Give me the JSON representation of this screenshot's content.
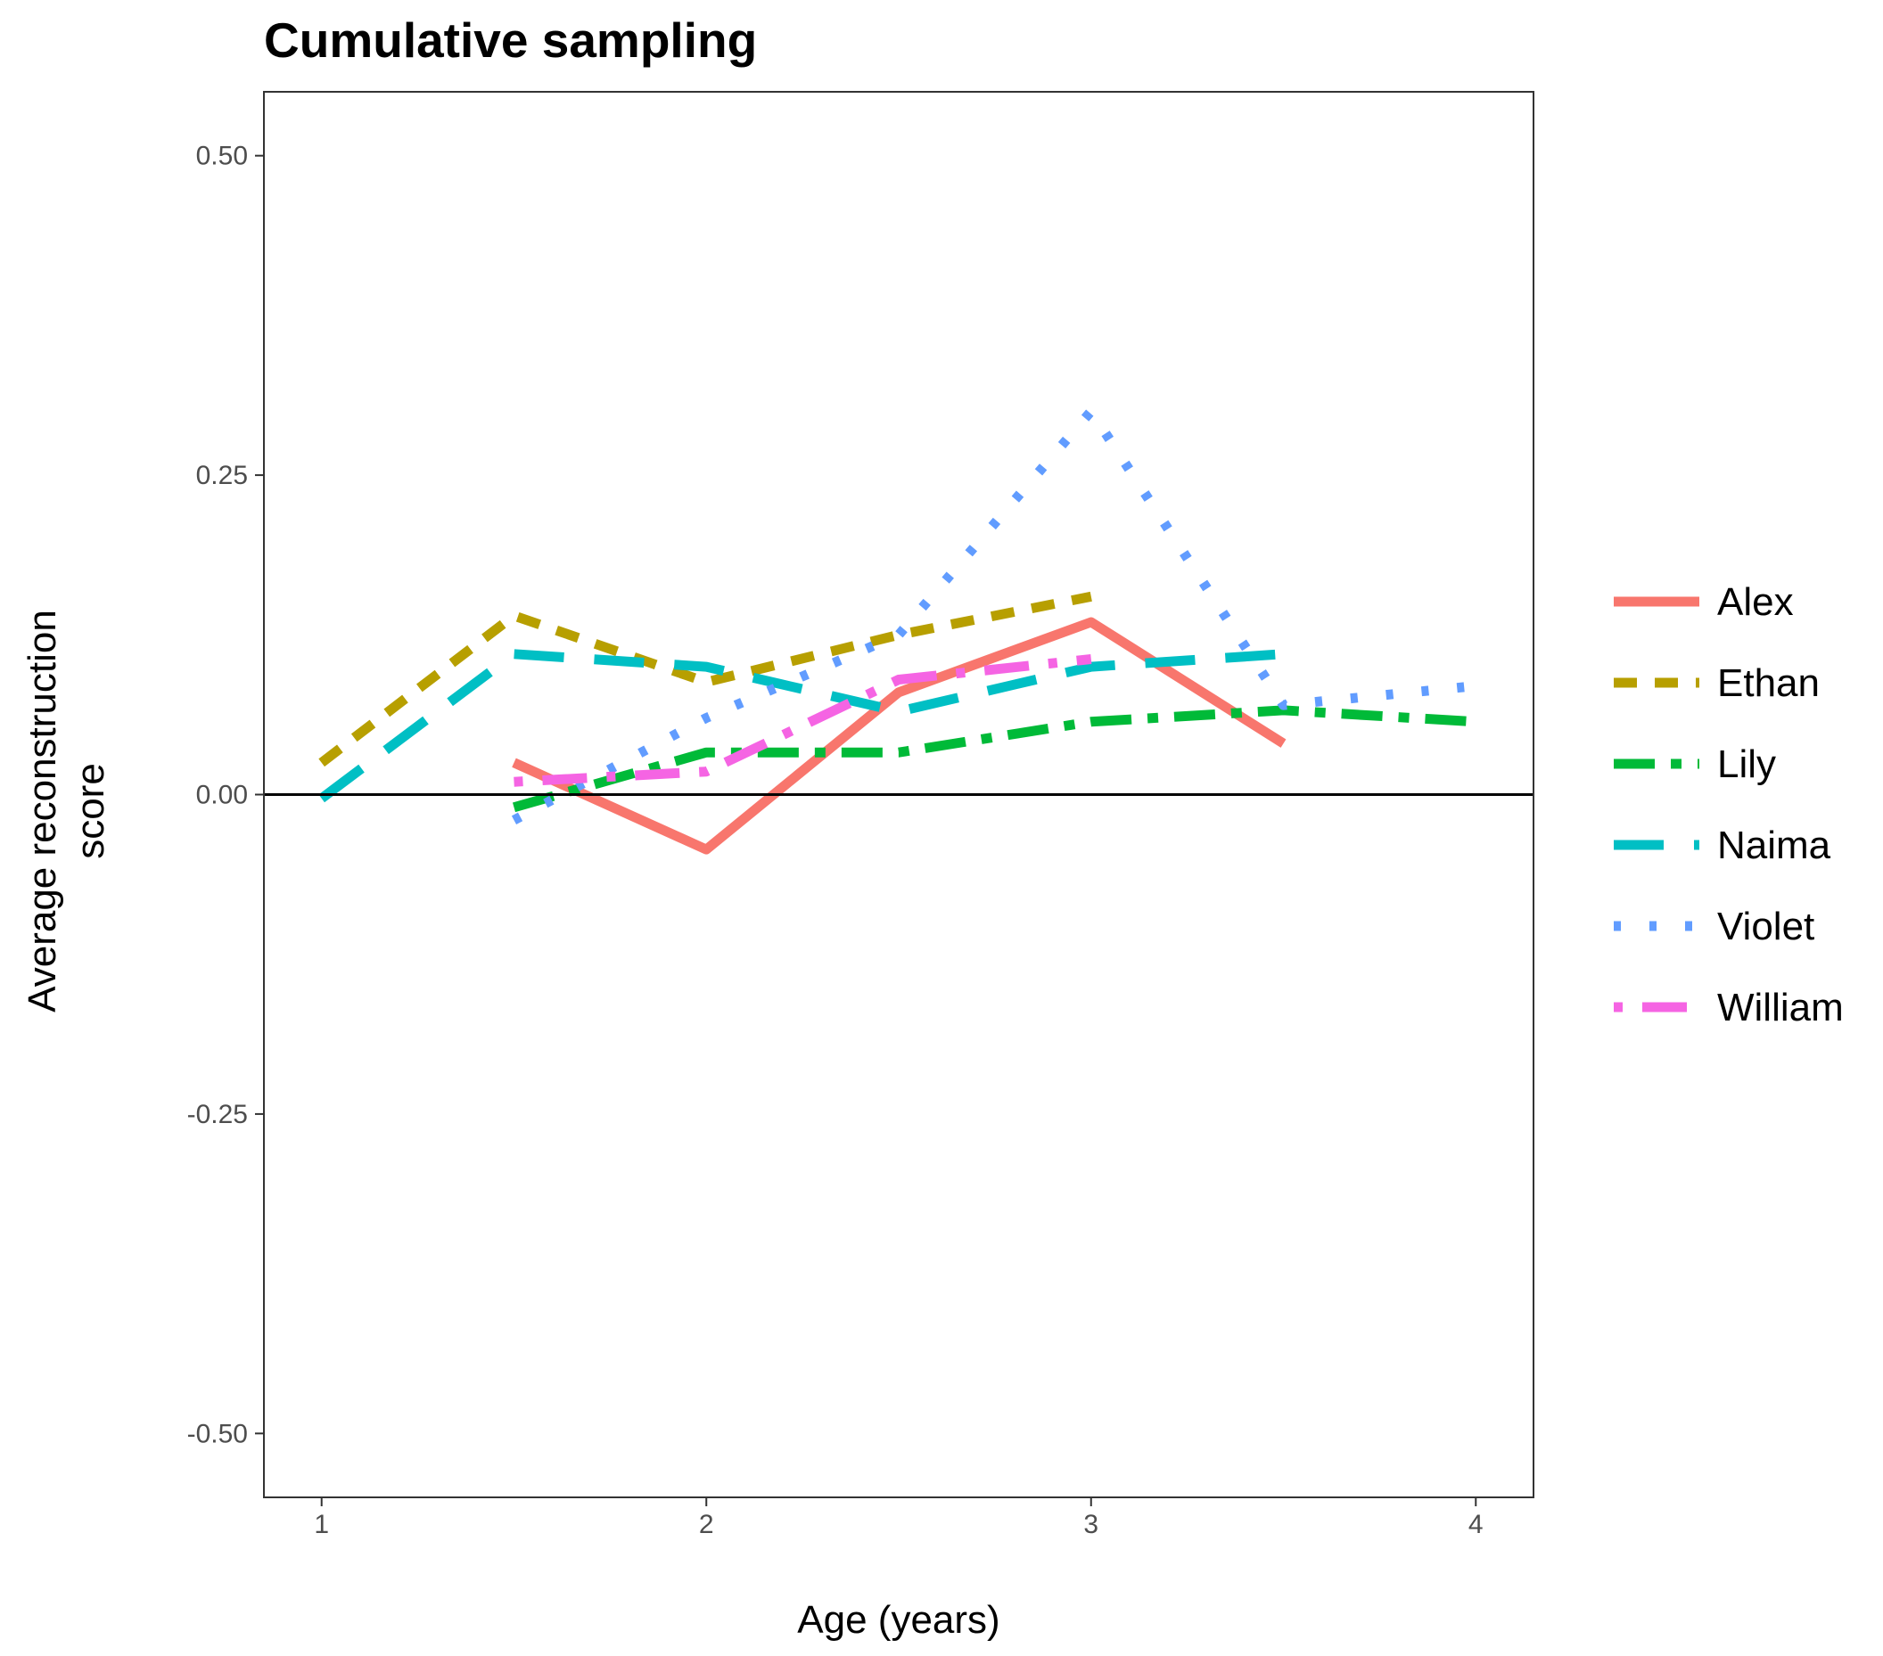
{
  "chart_data": {
    "type": "line",
    "title": "Cumulative sampling",
    "xlabel": "Age (years)",
    "ylabel": "Average reconstruction\nscore",
    "xlim": [
      0.85,
      4.15
    ],
    "ylim": [
      -0.55,
      0.55
    ],
    "x_ticks": [
      1,
      2,
      3,
      4
    ],
    "x_tick_labels": [
      "1",
      "2",
      "3",
      "4"
    ],
    "y_ticks": [
      0.5,
      0.25,
      0.0,
      -0.25,
      -0.5
    ],
    "y_tick_labels": [
      "0.50",
      "0.25",
      "0.00",
      "-0.25",
      "-0.50"
    ],
    "reference_line_y": 0,
    "grid": false,
    "legend_position": "right",
    "series": [
      {
        "name": "Alex",
        "color": "#F8766D",
        "dash": "solid",
        "x": [
          1.5,
          2.0,
          2.5,
          3.0,
          3.5
        ],
        "y": [
          0.025,
          -0.043,
          0.08,
          0.135,
          0.04
        ]
      },
      {
        "name": "Ethan",
        "color": "#B79F00",
        "dash": "dashed",
        "x": [
          1.0,
          1.5,
          2.0,
          2.5,
          3.0
        ],
        "y": [
          0.025,
          0.14,
          0.088,
          0.125,
          0.155
        ]
      },
      {
        "name": "Lily",
        "color": "#00BA38",
        "dash": "longdash-dot",
        "x": [
          1.5,
          2.0,
          2.5,
          3.0,
          3.5,
          4.0
        ],
        "y": [
          -0.01,
          0.033,
          0.033,
          0.057,
          0.066,
          0.057
        ]
      },
      {
        "name": "Naima",
        "color": "#00BFC4",
        "dash": "longdash",
        "x": [
          1.0,
          1.5,
          2.0,
          2.5,
          3.0,
          3.5
        ],
        "y": [
          -0.003,
          0.11,
          0.1,
          0.065,
          0.1,
          0.11
        ]
      },
      {
        "name": "Violet",
        "color": "#619CFF",
        "dash": "dotted",
        "x": [
          1.5,
          2.0,
          2.5,
          3.0,
          3.5,
          4.0
        ],
        "y": [
          -0.02,
          0.06,
          0.125,
          0.3,
          0.07,
          0.085
        ]
      },
      {
        "name": "William",
        "color": "#F564E3",
        "dash": "dot-longdash",
        "x": [
          1.5,
          2.0,
          2.5,
          3.0
        ],
        "y": [
          0.01,
          0.018,
          0.09,
          0.106
        ]
      }
    ]
  }
}
